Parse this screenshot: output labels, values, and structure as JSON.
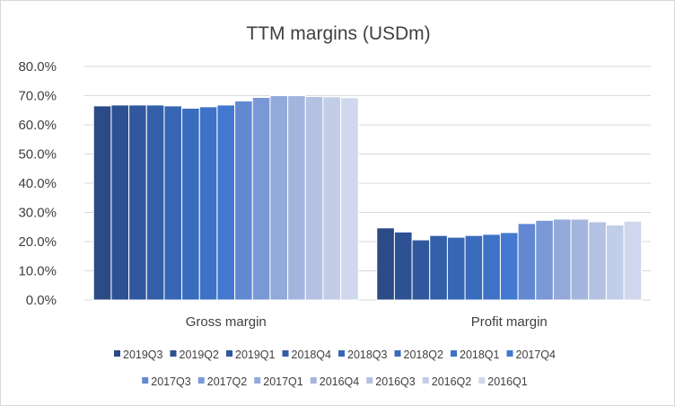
{
  "chart_data": {
    "type": "bar",
    "title": "TTM margins (USDm)",
    "xlabel": "",
    "ylabel": "",
    "ylim": [
      0,
      0.8
    ],
    "yticks": [
      "0.0%",
      "10.0%",
      "20.0%",
      "30.0%",
      "40.0%",
      "50.0%",
      "60.0%",
      "70.0%",
      "80.0%"
    ],
    "grid": true,
    "legend_position": "bottom",
    "categories": [
      "Gross margin",
      "Profit margin"
    ],
    "series": [
      {
        "name": "2019Q3",
        "color": "#2b4a86",
        "values": [
          0.665,
          0.247
        ]
      },
      {
        "name": "2019Q2",
        "color": "#2e5193",
        "values": [
          0.668,
          0.233
        ]
      },
      {
        "name": "2019Q1",
        "color": "#31589e",
        "values": [
          0.668,
          0.206
        ]
      },
      {
        "name": "2018Q4",
        "color": "#335fa9",
        "values": [
          0.668,
          0.221
        ]
      },
      {
        "name": "2018Q3",
        "color": "#3766b4",
        "values": [
          0.665,
          0.215
        ]
      },
      {
        "name": "2018Q2",
        "color": "#3a6cbe",
        "values": [
          0.657,
          0.221
        ]
      },
      {
        "name": "2018Q1",
        "color": "#3d72c7",
        "values": [
          0.662,
          0.225
        ]
      },
      {
        "name": "2017Q4",
        "color": "#4379d0",
        "values": [
          0.668,
          0.231
        ]
      },
      {
        "name": "2017Q3",
        "color": "#6288d2",
        "values": [
          0.682,
          0.262
        ]
      },
      {
        "name": "2017Q2",
        "color": "#7b98d6",
        "values": [
          0.694,
          0.273
        ]
      },
      {
        "name": "2017Q1",
        "color": "#93a9da",
        "values": [
          0.7,
          0.277
        ]
      },
      {
        "name": "2016Q4",
        "color": "#a4b5dd",
        "values": [
          0.7,
          0.277
        ]
      },
      {
        "name": "2016Q3",
        "color": "#b4c1e3",
        "values": [
          0.697,
          0.268
        ]
      },
      {
        "name": "2016Q2",
        "color": "#c2cde8",
        "values": [
          0.696,
          0.257
        ]
      },
      {
        "name": "2016Q1",
        "color": "#d0d8ed",
        "values": [
          0.693,
          0.27
        ]
      }
    ]
  }
}
